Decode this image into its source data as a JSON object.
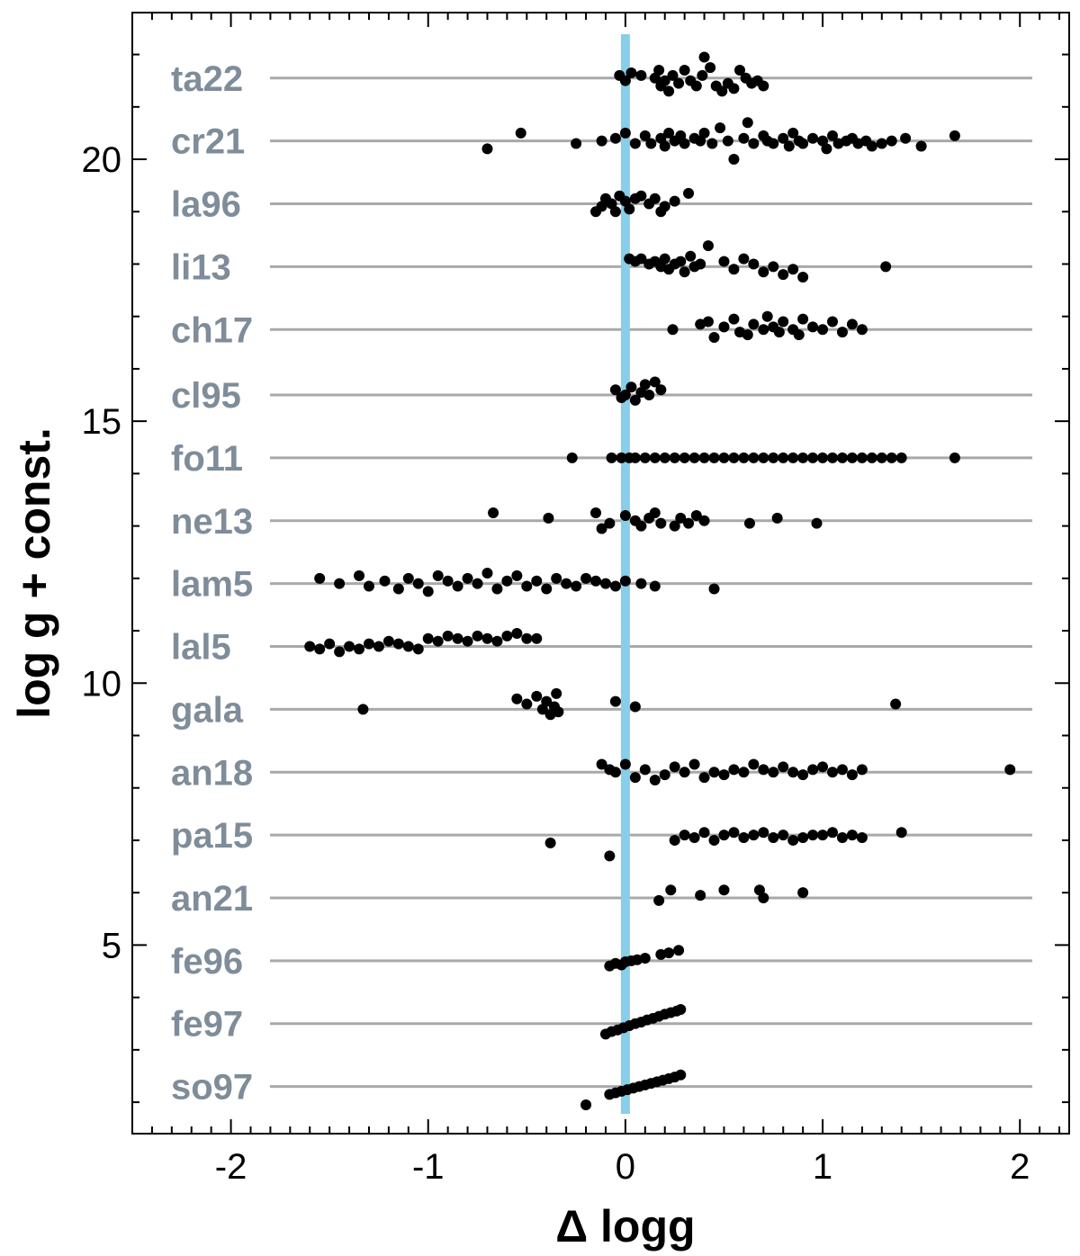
{
  "chart_data": {
    "type": "scatter",
    "title": "",
    "xlabel": "Δ logg",
    "ylabel": "log g + const.",
    "xlim": [
      -2.5,
      2.25
    ],
    "ylim": [
      1.4,
      22.8
    ],
    "x_ticks": [
      -2,
      -1,
      0,
      1,
      2
    ],
    "x_tick_labels": [
      "-2",
      "-1",
      "0",
      "1",
      "2"
    ],
    "y_ticks": [
      5,
      10,
      15,
      20
    ],
    "y_tick_labels": [
      "5",
      "10",
      "15",
      "20"
    ],
    "reference_line": {
      "x": 0,
      "color": "#87ceeb"
    },
    "baseline_color": "#a9a9a9",
    "marker_color": "#000000",
    "label_color": "#7f8c99",
    "rows": [
      {
        "name": "ta22",
        "baseline": 21.55,
        "dx": [
          -0.03,
          0.0,
          0.03,
          0.08,
          0.15,
          0.17,
          0.18,
          0.2,
          0.22,
          0.24,
          0.27,
          0.3,
          0.33,
          0.36,
          0.39,
          0.4,
          0.43,
          0.46,
          0.49,
          0.52,
          0.55,
          0.58,
          0.61,
          0.64,
          0.67,
          0.7
        ],
        "y": [
          21.6,
          21.5,
          21.65,
          21.6,
          21.55,
          21.7,
          21.4,
          21.5,
          21.3,
          21.6,
          21.45,
          21.7,
          21.5,
          21.4,
          21.6,
          21.95,
          21.75,
          21.4,
          21.3,
          21.45,
          21.35,
          21.7,
          21.55,
          21.45,
          21.5,
          21.4
        ]
      },
      {
        "name": "cr21",
        "baseline": 20.35,
        "dx": [
          -0.7,
          -0.53,
          -0.25,
          -0.12,
          -0.05,
          0.0,
          0.05,
          0.1,
          0.13,
          0.18,
          0.2,
          0.22,
          0.25,
          0.28,
          0.3,
          0.35,
          0.38,
          0.4,
          0.44,
          0.48,
          0.52,
          0.55,
          0.6,
          0.62,
          0.65,
          0.7,
          0.72,
          0.75,
          0.8,
          0.83,
          0.85,
          0.88,
          0.9,
          0.95,
          1.0,
          1.02,
          1.05,
          1.08,
          1.12,
          1.15,
          1.18,
          1.22,
          1.25,
          1.3,
          1.35,
          1.42,
          1.5,
          1.67
        ],
        "y": [
          20.2,
          20.5,
          20.3,
          20.35,
          20.4,
          20.5,
          20.3,
          20.45,
          20.3,
          20.4,
          20.25,
          20.5,
          20.35,
          20.45,
          20.3,
          20.4,
          20.35,
          20.5,
          20.3,
          20.6,
          20.35,
          20.0,
          20.4,
          20.7,
          20.3,
          20.45,
          20.35,
          20.3,
          20.4,
          20.25,
          20.5,
          20.35,
          20.3,
          20.4,
          20.35,
          20.2,
          20.45,
          20.3,
          20.35,
          20.4,
          20.3,
          20.35,
          20.25,
          20.3,
          20.35,
          20.4,
          20.25,
          20.45
        ]
      },
      {
        "name": "la96",
        "baseline": 19.15,
        "dx": [
          -0.15,
          -0.12,
          -0.1,
          -0.07,
          -0.05,
          -0.03,
          0.0,
          0.02,
          0.05,
          0.08,
          0.12,
          0.15,
          0.18,
          0.2,
          0.25,
          0.32
        ],
        "y": [
          19.0,
          19.1,
          19.25,
          19.15,
          19.0,
          19.3,
          19.2,
          19.05,
          19.25,
          19.3,
          19.15,
          19.25,
          19.0,
          19.1,
          19.2,
          19.35
        ]
      },
      {
        "name": "li13",
        "baseline": 17.95,
        "dx": [
          0.02,
          0.05,
          0.08,
          0.12,
          0.15,
          0.18,
          0.2,
          0.22,
          0.25,
          0.28,
          0.3,
          0.33,
          0.35,
          0.38,
          0.42,
          0.5,
          0.55,
          0.6,
          0.65,
          0.7,
          0.75,
          0.8,
          0.85,
          0.9,
          1.32
        ],
        "y": [
          18.1,
          18.05,
          18.1,
          18.0,
          18.05,
          17.95,
          18.1,
          17.9,
          18.0,
          18.05,
          17.85,
          18.15,
          17.95,
          18.0,
          18.35,
          18.05,
          17.9,
          18.1,
          18.0,
          17.85,
          17.95,
          17.8,
          17.9,
          17.75,
          17.95
        ]
      },
      {
        "name": "ch17",
        "baseline": 16.75,
        "dx": [
          0.24,
          0.38,
          0.42,
          0.45,
          0.5,
          0.55,
          0.58,
          0.62,
          0.65,
          0.7,
          0.72,
          0.75,
          0.78,
          0.8,
          0.85,
          0.88,
          0.9,
          0.95,
          1.0,
          1.05,
          1.1,
          1.15,
          1.2
        ],
        "y": [
          16.75,
          16.85,
          16.9,
          16.6,
          16.8,
          16.95,
          16.7,
          16.65,
          16.85,
          16.75,
          17.0,
          16.8,
          16.7,
          16.9,
          16.75,
          16.65,
          16.95,
          16.8,
          16.75,
          16.9,
          16.7,
          16.85,
          16.75
        ]
      },
      {
        "name": "cl95",
        "baseline": 15.5,
        "dx": [
          -0.05,
          -0.02,
          0.0,
          0.03,
          0.05,
          0.08,
          0.1,
          0.12,
          0.15,
          0.18
        ],
        "y": [
          15.6,
          15.45,
          15.5,
          15.65,
          15.4,
          15.55,
          15.7,
          15.5,
          15.75,
          15.6
        ]
      },
      {
        "name": "fo11",
        "baseline": 14.3,
        "dx": [
          -0.27,
          -0.07,
          -0.02,
          0.02,
          0.05,
          0.1,
          0.15,
          0.2,
          0.25,
          0.3,
          0.35,
          0.4,
          0.45,
          0.5,
          0.55,
          0.6,
          0.65,
          0.7,
          0.75,
          0.8,
          0.85,
          0.9,
          0.95,
          1.0,
          1.05,
          1.1,
          1.15,
          1.2,
          1.25,
          1.3,
          1.35,
          1.4,
          1.67
        ],
        "y": [
          14.3,
          14.3,
          14.3,
          14.3,
          14.3,
          14.3,
          14.3,
          14.3,
          14.3,
          14.3,
          14.3,
          14.3,
          14.3,
          14.3,
          14.3,
          14.3,
          14.3,
          14.3,
          14.3,
          14.3,
          14.3,
          14.3,
          14.3,
          14.3,
          14.3,
          14.3,
          14.3,
          14.3,
          14.3,
          14.3,
          14.3,
          14.3,
          14.3
        ]
      },
      {
        "name": "ne13",
        "baseline": 13.1,
        "dx": [
          -0.67,
          -0.39,
          -0.15,
          -0.12,
          -0.08,
          0.0,
          0.05,
          0.08,
          0.12,
          0.15,
          0.18,
          0.25,
          0.28,
          0.32,
          0.36,
          0.4,
          0.63,
          0.77,
          0.97
        ],
        "y": [
          13.25,
          13.15,
          13.25,
          12.95,
          13.05,
          13.2,
          13.1,
          13.0,
          13.15,
          13.25,
          13.05,
          13.0,
          13.15,
          13.05,
          13.2,
          13.1,
          13.05,
          13.15,
          13.05
        ]
      },
      {
        "name": "lam5",
        "baseline": 11.9,
        "dx": [
          -1.55,
          -1.45,
          -1.35,
          -1.3,
          -1.22,
          -1.15,
          -1.1,
          -1.05,
          -1.0,
          -0.95,
          -0.9,
          -0.85,
          -0.8,
          -0.75,
          -0.7,
          -0.65,
          -0.6,
          -0.55,
          -0.5,
          -0.45,
          -0.4,
          -0.35,
          -0.3,
          -0.25,
          -0.2,
          -0.15,
          -0.1,
          -0.05,
          0.0,
          0.08,
          0.15,
          0.45
        ],
        "y": [
          12.0,
          11.9,
          12.05,
          11.85,
          11.95,
          11.8,
          12.0,
          11.9,
          11.75,
          12.05,
          11.95,
          11.85,
          12.0,
          11.9,
          12.1,
          11.8,
          11.95,
          12.05,
          11.85,
          11.95,
          11.8,
          12.0,
          11.9,
          11.85,
          12.0,
          11.95,
          11.9,
          11.85,
          11.95,
          11.9,
          11.85,
          11.8
        ]
      },
      {
        "name": "lal5",
        "baseline": 10.7,
        "dx": [
          -1.6,
          -1.55,
          -1.5,
          -1.45,
          -1.4,
          -1.35,
          -1.3,
          -1.25,
          -1.2,
          -1.15,
          -1.1,
          -1.05,
          -1.0,
          -0.95,
          -0.9,
          -0.85,
          -0.8,
          -0.75,
          -0.7,
          -0.65,
          -0.6,
          -0.55,
          -0.5,
          -0.45
        ],
        "y": [
          10.7,
          10.65,
          10.75,
          10.6,
          10.7,
          10.65,
          10.75,
          10.7,
          10.8,
          10.75,
          10.7,
          10.65,
          10.85,
          10.8,
          10.9,
          10.85,
          10.8,
          10.9,
          10.85,
          10.8,
          10.9,
          10.95,
          10.85,
          10.85
        ]
      },
      {
        "name": "gala",
        "baseline": 9.5,
        "dx": [
          -1.33,
          -0.55,
          -0.5,
          -0.45,
          -0.42,
          -0.4,
          -0.38,
          -0.36,
          -0.35,
          -0.34,
          -0.05,
          0.05,
          1.37
        ],
        "y": [
          9.5,
          9.7,
          9.6,
          9.75,
          9.5,
          9.65,
          9.4,
          9.55,
          9.8,
          9.45,
          9.65,
          9.55,
          9.6
        ]
      },
      {
        "name": "an18",
        "baseline": 8.3,
        "dx": [
          -0.12,
          -0.08,
          -0.05,
          0.0,
          0.05,
          0.1,
          0.15,
          0.2,
          0.25,
          0.3,
          0.35,
          0.4,
          0.45,
          0.5,
          0.55,
          0.6,
          0.65,
          0.7,
          0.75,
          0.8,
          0.85,
          0.9,
          0.95,
          1.0,
          1.05,
          1.1,
          1.15,
          1.2,
          1.95
        ],
        "y": [
          8.45,
          8.35,
          8.3,
          8.45,
          8.2,
          8.35,
          8.15,
          8.25,
          8.4,
          8.3,
          8.45,
          8.2,
          8.3,
          8.25,
          8.35,
          8.3,
          8.45,
          8.35,
          8.3,
          8.4,
          8.3,
          8.25,
          8.35,
          8.4,
          8.3,
          8.35,
          8.25,
          8.35,
          8.35
        ]
      },
      {
        "name": "pa15",
        "baseline": 7.1,
        "dx": [
          -0.38,
          -0.08,
          0.25,
          0.3,
          0.35,
          0.4,
          0.45,
          0.5,
          0.55,
          0.6,
          0.65,
          0.7,
          0.75,
          0.8,
          0.85,
          0.9,
          0.95,
          1.0,
          1.05,
          1.1,
          1.15,
          1.2,
          1.4
        ],
        "y": [
          6.95,
          6.7,
          7.0,
          7.1,
          7.05,
          7.15,
          7.0,
          7.1,
          7.15,
          7.05,
          7.1,
          7.15,
          7.05,
          7.1,
          7.0,
          7.05,
          7.1,
          7.1,
          7.15,
          7.05,
          7.1,
          7.05,
          7.15
        ]
      },
      {
        "name": "an21",
        "baseline": 5.9,
        "dx": [
          0.17,
          0.23,
          0.38,
          0.5,
          0.68,
          0.7,
          0.9
        ],
        "y": [
          5.85,
          6.05,
          5.95,
          6.05,
          6.05,
          5.9,
          6.0
        ]
      },
      {
        "name": "fe96",
        "baseline": 4.7,
        "dx": [
          -0.08,
          -0.05,
          -0.02,
          0.0,
          0.03,
          0.06,
          0.1,
          0.18,
          0.22,
          0.27
        ],
        "y": [
          4.6,
          4.65,
          4.62,
          4.68,
          4.7,
          4.72,
          4.75,
          4.82,
          4.85,
          4.9
        ]
      },
      {
        "name": "fe97",
        "baseline": 3.5,
        "dx": [
          -0.1,
          -0.07,
          -0.04,
          -0.01,
          0.02,
          0.05,
          0.08,
          0.11,
          0.14,
          0.17,
          0.2,
          0.23,
          0.26,
          0.28
        ],
        "y": [
          3.3,
          3.35,
          3.38,
          3.42,
          3.46,
          3.5,
          3.53,
          3.57,
          3.6,
          3.64,
          3.68,
          3.71,
          3.74,
          3.77
        ]
      },
      {
        "name": "so97",
        "baseline": 2.3,
        "dx": [
          -0.2,
          -0.08,
          -0.05,
          -0.02,
          0.01,
          0.04,
          0.07,
          0.1,
          0.13,
          0.16,
          0.19,
          0.22,
          0.25,
          0.28
        ],
        "y": [
          1.95,
          2.15,
          2.18,
          2.21,
          2.24,
          2.27,
          2.3,
          2.33,
          2.36,
          2.39,
          2.42,
          2.45,
          2.48,
          2.52
        ]
      }
    ]
  }
}
